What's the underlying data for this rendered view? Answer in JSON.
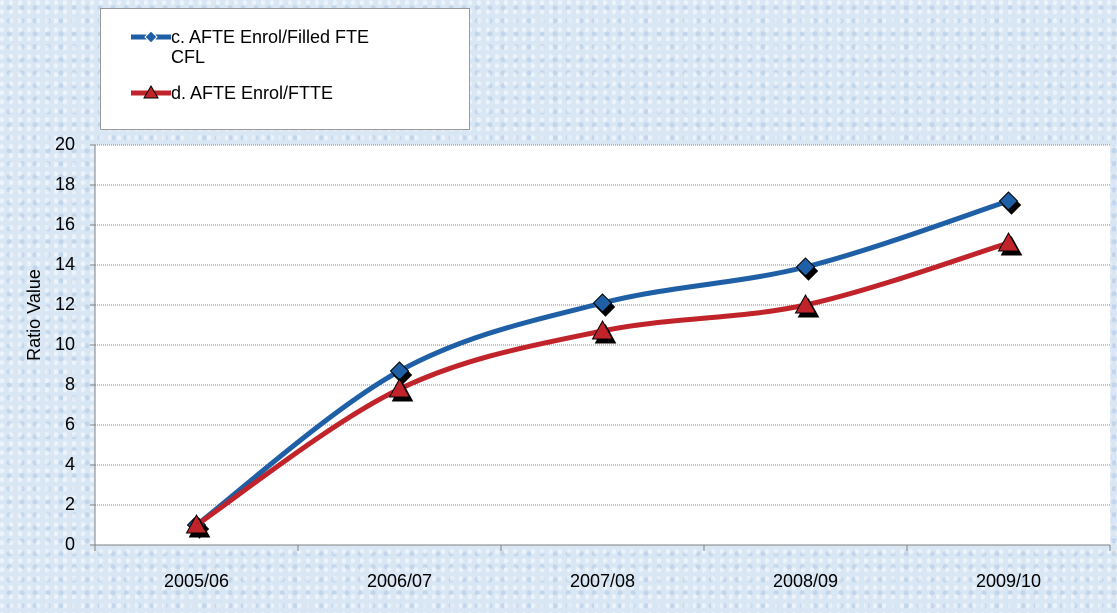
{
  "chart_data": {
    "type": "line",
    "y_label": "Ratio Value",
    "categories": [
      "2005/06",
      "2006/07",
      "2007/08",
      "2008/09",
      "2009/10"
    ],
    "series": [
      {
        "name": "c. AFTE Enrol/Filled FTE CFL",
        "color": "#1f5fa6",
        "marker": "diamond",
        "values": [
          1.0,
          8.7,
          12.1,
          13.9,
          17.2
        ]
      },
      {
        "name": "d. AFTE Enrol/FTTE",
        "color": "#c0242a",
        "marker": "triangle",
        "values": [
          1.0,
          7.8,
          10.7,
          12.0,
          15.1
        ]
      }
    ],
    "ylim": [
      0,
      20
    ],
    "yticks": [
      0,
      2,
      4,
      6,
      8,
      10,
      12,
      14,
      16,
      18,
      20
    ],
    "grid": true,
    "legend": "top-left"
  }
}
